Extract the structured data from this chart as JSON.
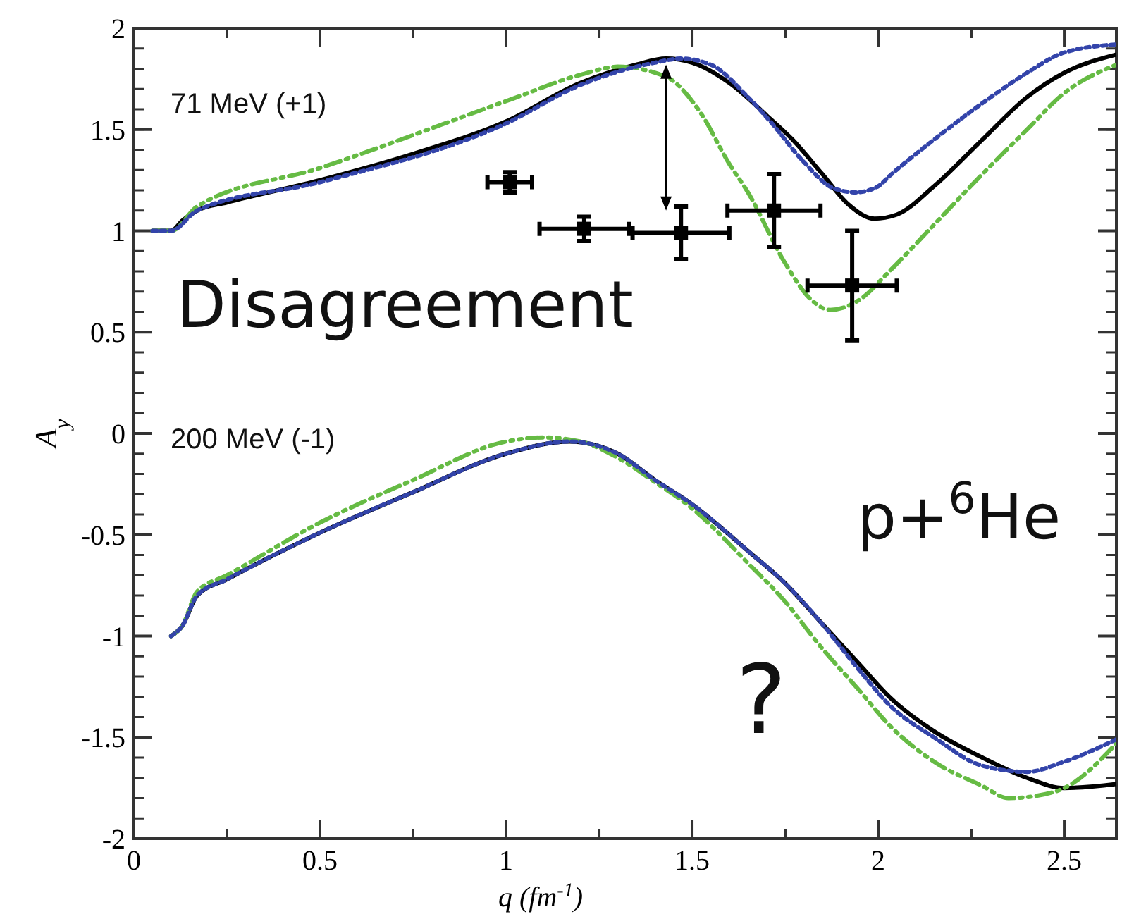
{
  "chart_data": {
    "type": "line",
    "xlabel": "q (fm$^{-1}$)",
    "ylabel": "A$_{y}$",
    "xlim": [
      0,
      2.64
    ],
    "ylim": [
      -2,
      2
    ],
    "xticks": [
      0,
      {
        "value": 0.25,
        "label": null
      },
      0.5,
      {
        "value": 0.75,
        "label": null
      },
      1,
      {
        "value": 1.25,
        "label": null
      },
      1.5,
      {
        "value": 1.75,
        "label": null
      },
      2,
      {
        "value": 2.25,
        "label": null
      },
      2.5
    ],
    "yticks": [
      -2,
      -1.5,
      -1,
      -0.5,
      0,
      0.5,
      1,
      1.5,
      2
    ],
    "grid": false,
    "annotations": [
      "71 MeV (+1)",
      "200 MeV (-1)",
      "Disagreement",
      "p+$^{6}$He",
      "?"
    ],
    "series": [
      {
        "type": "line",
        "color": "#000000",
        "line_style": "solid",
        "x": [
          0.05,
          0.1,
          0.13,
          0.17,
          0.25,
          0.5,
          0.75,
          1,
          1.2,
          1.35,
          1.43,
          1.5,
          1.6,
          1.7,
          1.77,
          1.85,
          1.92,
          1.99,
          2.05,
          2.15,
          2.28,
          2.4,
          2.5,
          2.64
        ],
        "values": [
          1.0,
          1.0,
          1.05,
          1.1,
          1.14,
          1.25,
          1.38,
          1.54,
          1.73,
          1.82,
          1.85,
          1.83,
          1.73,
          1.57,
          1.45,
          1.28,
          1.13,
          1.06,
          1.08,
          1.22,
          1.45,
          1.66,
          1.78,
          1.87
        ]
      },
      {
        "type": "line",
        "color": "#3344aa",
        "line_style": "dotted",
        "x": [
          0.05,
          0.1,
          0.17,
          0.5,
          1,
          1.2,
          1.4,
          1.47,
          1.55,
          1.65,
          1.71,
          1.8,
          1.88,
          1.94,
          2.0,
          2.03,
          2.15,
          2.28,
          2.4,
          2.5,
          2.64
        ],
        "values": [
          1.0,
          1.0,
          1.1,
          1.24,
          1.53,
          1.72,
          1.83,
          1.85,
          1.82,
          1.66,
          1.54,
          1.34,
          1.21,
          1.19,
          1.22,
          1.27,
          1.45,
          1.63,
          1.78,
          1.88,
          1.92
        ]
      },
      {
        "type": "line",
        "color": "#66bb44",
        "line_style": "dashed",
        "x": [
          0.05,
          0.1,
          0.17,
          0.5,
          1,
          1.2,
          1.3,
          1.43,
          1.52,
          1.6,
          1.65,
          1.75,
          1.82,
          1.87,
          1.95,
          2.03,
          2.15,
          2.28,
          2.4,
          2.5,
          2.64
        ],
        "values": [
          1.0,
          1.0,
          1.12,
          1.31,
          1.64,
          1.77,
          1.81,
          1.76,
          1.59,
          1.33,
          1.19,
          0.84,
          0.66,
          0.61,
          0.66,
          0.8,
          1.03,
          1.28,
          1.5,
          1.68,
          1.82
        ]
      },
      {
        "type": "line",
        "color": "#000000",
        "line_style": "solid",
        "x": [
          0.1,
          0.13,
          0.17,
          0.25,
          0.5,
          0.75,
          1,
          1.17,
          1.3,
          1.4,
          1.5,
          1.65,
          1.75,
          1.84,
          1.95,
          2.03,
          2.15,
          2.28,
          2.4,
          2.5,
          2.64
        ],
        "values": [
          -1.0,
          -0.95,
          -0.8,
          -0.72,
          -0.49,
          -0.29,
          -0.1,
          -0.04,
          -0.1,
          -0.23,
          -0.35,
          -0.58,
          -0.74,
          -0.92,
          -1.14,
          -1.3,
          -1.47,
          -1.6,
          -1.7,
          -1.75,
          -1.73
        ]
      },
      {
        "type": "line",
        "color": "#3344aa",
        "line_style": "dotted",
        "x": [
          0.1,
          0.13,
          0.17,
          0.25,
          0.5,
          0.75,
          1,
          1.17,
          1.3,
          1.4,
          1.5,
          1.65,
          1.75,
          1.84,
          1.95,
          2.03,
          2.15,
          2.28,
          2.4,
          2.5,
          2.64
        ],
        "values": [
          -1.0,
          -0.95,
          -0.8,
          -0.72,
          -0.49,
          -0.29,
          -0.1,
          -0.04,
          -0.1,
          -0.23,
          -0.35,
          -0.58,
          -0.74,
          -0.92,
          -1.17,
          -1.34,
          -1.5,
          -1.64,
          -1.67,
          -1.62,
          -1.51
        ]
      },
      {
        "type": "line",
        "color": "#66bb44",
        "line_style": "dashed",
        "x": [
          0.1,
          0.13,
          0.17,
          0.25,
          0.5,
          0.75,
          1,
          1.1,
          1.2,
          1.3,
          1.4,
          1.5,
          1.65,
          1.75,
          1.84,
          1.95,
          2.03,
          2.15,
          2.28,
          2.35,
          2.45,
          2.5,
          2.64
        ],
        "values": [
          -1.0,
          -0.95,
          -0.78,
          -0.7,
          -0.44,
          -0.23,
          -0.04,
          -0.02,
          -0.04,
          -0.12,
          -0.24,
          -0.37,
          -0.64,
          -0.83,
          -1.04,
          -1.27,
          -1.44,
          -1.62,
          -1.74,
          -1.8,
          -1.78,
          -1.75,
          -1.53
        ]
      },
      {
        "type": "scatter",
        "color": "#000000",
        "marker": "square",
        "x": [
          1.01,
          1.21,
          1.47,
          1.72,
          1.93
        ],
        "values": [
          1.24,
          1.01,
          0.99,
          1.1,
          0.73
        ],
        "errors": [
          0.05,
          0.06,
          0.13,
          0.18,
          0.27
        ],
        "xerrors": [
          0.06,
          0.12,
          0.13,
          0.125,
          0.12
        ]
      }
    ]
  }
}
